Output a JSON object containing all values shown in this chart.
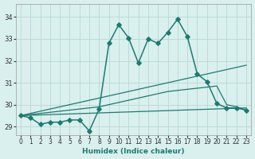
{
  "xlabel": "Humidex (Indice chaleur)",
  "xlim": [
    -0.5,
    23.5
  ],
  "ylim": [
    28.6,
    34.6
  ],
  "yticks": [
    29,
    30,
    31,
    32,
    33,
    34
  ],
  "xticks": [
    0,
    1,
    2,
    3,
    4,
    5,
    6,
    7,
    8,
    9,
    10,
    11,
    12,
    13,
    14,
    15,
    16,
    17,
    18,
    19,
    20,
    21,
    22,
    23
  ],
  "background_color": "#d9f0ee",
  "grid_color": "#b8d8d4",
  "line_color": "#1e7a70",
  "lines": [
    {
      "x": [
        0,
        1,
        2,
        3,
        4,
        5,
        6,
        7,
        8,
        9,
        10,
        11,
        12,
        13,
        14,
        15,
        16,
        17,
        18,
        19,
        20,
        21,
        22,
        23
      ],
      "y": [
        29.5,
        29.4,
        29.1,
        29.2,
        29.2,
        29.3,
        29.3,
        28.8,
        29.8,
        32.8,
        33.65,
        33.05,
        31.9,
        33.0,
        32.8,
        33.3,
        33.9,
        33.1,
        31.4,
        31.05,
        30.05,
        29.85,
        29.85,
        29.75
      ],
      "marker": "D",
      "markersize": 2.8,
      "linewidth": 1.1,
      "zorder": 4
    },
    {
      "x": [
        0,
        1,
        2,
        3,
        4,
        5,
        6,
        7,
        8,
        9,
        10,
        11,
        12,
        13,
        14,
        15,
        16,
        17,
        18,
        19,
        20,
        21,
        22,
        23
      ],
      "y": [
        29.5,
        29.55,
        29.6,
        29.65,
        29.7,
        29.75,
        29.8,
        29.85,
        29.9,
        30.0,
        30.1,
        30.2,
        30.3,
        30.4,
        30.5,
        30.6,
        30.65,
        30.7,
        30.75,
        30.8,
        30.85,
        30.0,
        29.9,
        29.75
      ],
      "marker": null,
      "markersize": 0,
      "linewidth": 0.9,
      "zorder": 3
    },
    {
      "x": [
        0,
        23
      ],
      "y": [
        29.5,
        31.8
      ],
      "marker": null,
      "markersize": 0,
      "linewidth": 0.9,
      "zorder": 2
    },
    {
      "x": [
        0,
        23
      ],
      "y": [
        29.5,
        29.85
      ],
      "marker": null,
      "markersize": 0,
      "linewidth": 0.9,
      "zorder": 2
    }
  ]
}
